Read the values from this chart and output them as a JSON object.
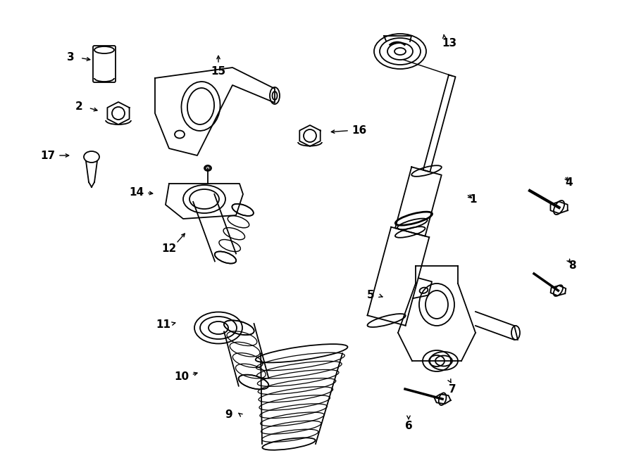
{
  "bg_color": "#ffffff",
  "line_color": "#000000",
  "lw": 1.3
}
